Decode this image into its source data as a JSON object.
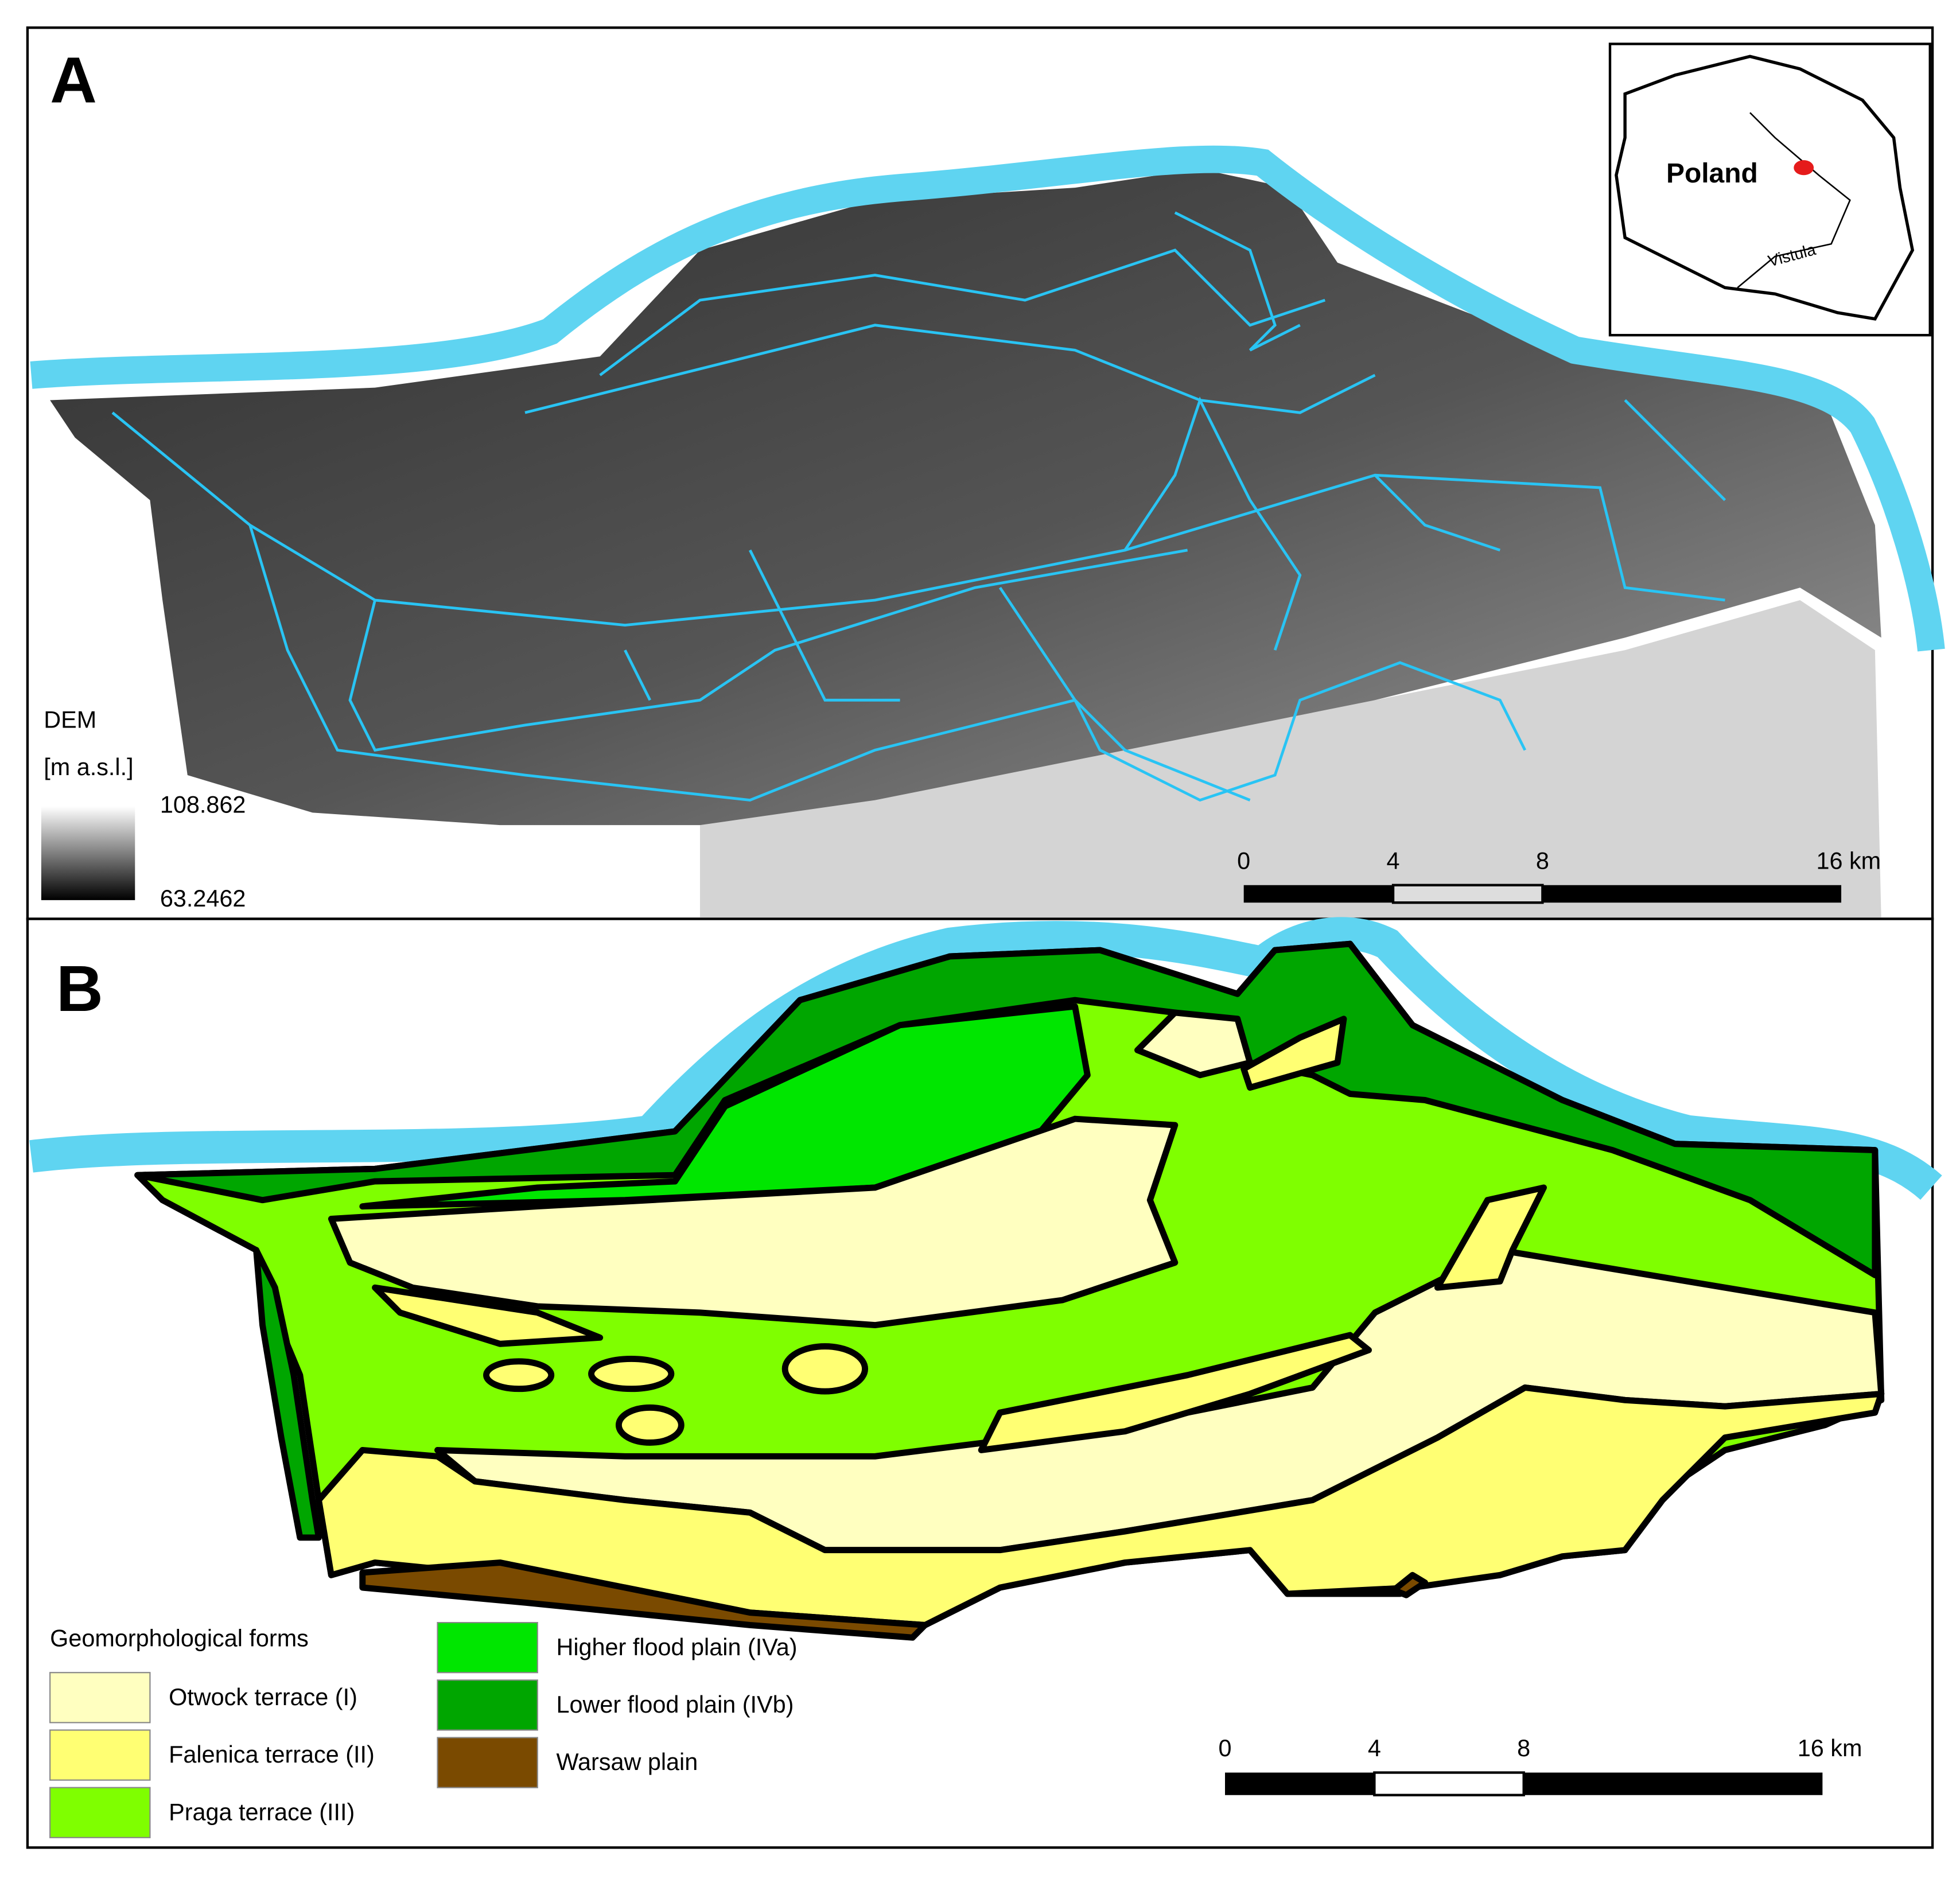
{
  "panel_a": {
    "label": "A",
    "inset": {
      "country": "Poland",
      "river": "Vistula"
    },
    "dem_legend": {
      "title": "DEM",
      "unit": "[m a.s.l.]",
      "max": "108.862",
      "min": "63.2462"
    },
    "scale_bar": [
      "0",
      "4",
      "8",
      "16 km"
    ]
  },
  "panel_b": {
    "label": "B",
    "legend": {
      "title": "Geomorphological forms",
      "items": [
        {
          "name": "Otwock terrace (I)",
          "color": "#ffffc0"
        },
        {
          "name": "Falenica terrace (II)",
          "color": "#ffff73"
        },
        {
          "name": "Praga terrace (III)",
          "color": "#7fff00"
        },
        {
          "name": "Higher flood plain  (IVa)",
          "color": "#00e600"
        },
        {
          "name": "Lower flood plain (IVb)",
          "color": "#00a600"
        },
        {
          "name": "Warsaw plain",
          "color": "#7a4a00"
        }
      ]
    },
    "scale_bar": [
      "0",
      "4",
      "8",
      "16 km"
    ]
  }
}
